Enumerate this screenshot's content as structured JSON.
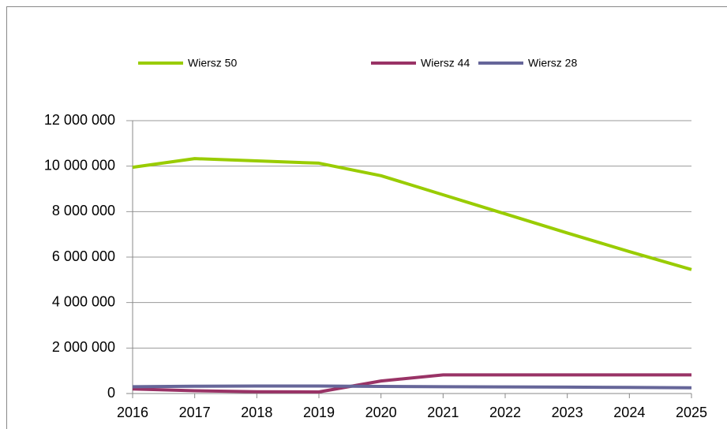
{
  "chart_data": {
    "type": "line",
    "x": [
      2016,
      2017,
      2018,
      2019,
      2020,
      2021,
      2022,
      2023,
      2024,
      2025
    ],
    "series": [
      {
        "name": "Wiersz 50",
        "color": "#99cc00",
        "values": [
          9950000,
          10330000,
          10230000,
          10130000,
          9580000,
          8740000,
          7900000,
          7060000,
          6240000,
          5450000
        ]
      },
      {
        "name": "Wiersz 44",
        "color": "#993366",
        "values": [
          200000,
          120000,
          80000,
          70000,
          550000,
          820000,
          820000,
          820000,
          820000,
          820000
        ]
      },
      {
        "name": "Wiersz 28",
        "color": "#666699",
        "values": [
          300000,
          320000,
          330000,
          330000,
          310000,
          300000,
          290000,
          280000,
          270000,
          250000
        ]
      }
    ],
    "xlim": [
      2016,
      2025
    ],
    "xticks": [
      2016,
      2017,
      2018,
      2019,
      2020,
      2021,
      2022,
      2023,
      2024,
      2025
    ],
    "ylim": [
      0,
      12000000
    ],
    "yticks": [
      0,
      {
        "value": 2000000,
        "label": "2 000 000"
      },
      {
        "value": 4000000,
        "label": "4 000 000"
      },
      {
        "value": 6000000,
        "label": "6 000 000"
      },
      {
        "value": 8000000,
        "label": "8 000 000"
      },
      {
        "value": 10000000,
        "label": "10 000 000"
      },
      {
        "value": 12000000,
        "label": "12 000 000"
      }
    ],
    "grid": true,
    "legend": "top"
  }
}
